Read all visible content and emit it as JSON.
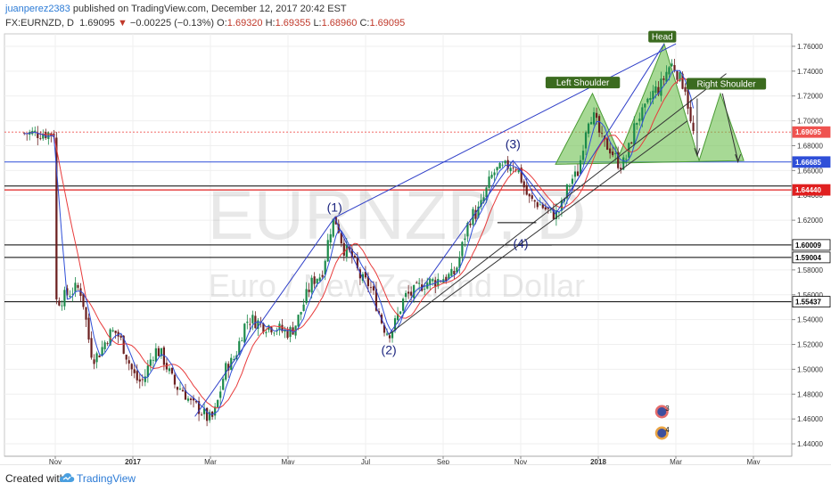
{
  "header": {
    "author": "juanperez2383",
    "published": "published on TradingView.com, December 12, 2017 20:42 EST",
    "symbol": "FX:EURNZD, D",
    "last": "1.69095",
    "change": "−0.00225 (−0.13%)",
    "open_label": "O:",
    "open": "1.69320",
    "high_label": "H:",
    "high": "1.69355",
    "low_label": "L:",
    "low": "1.68960",
    "close_label": "C:",
    "close": "1.69095"
  },
  "watermark": {
    "symbol": "EURNZD, D",
    "name": "Euro / New Zealand Dollar"
  },
  "footer": {
    "created": "Created with",
    "brand": "TradingView"
  },
  "colors": {
    "up": "#1b8a4a",
    "down": "#6b1f1f",
    "ma_blue": "#2f4fd8",
    "ma_red": "#e83b3b",
    "pattern_fill": "#6dbf4f",
    "label_bg": "#3b6b1f"
  },
  "chart_data": {
    "type": "candlestick",
    "ylim": [
      1.43,
      1.77
    ],
    "yticks": [
      "1.76000",
      "1.74000",
      "1.72000",
      "1.70000",
      "1.68000",
      "1.66000",
      "1.64000",
      "1.62000",
      "1.60000",
      "1.58000",
      "1.56000",
      "1.54000",
      "1.52000",
      "1.50000",
      "1.48000",
      "1.46000",
      "1.44000"
    ],
    "xticks": [
      "Nov",
      "2017",
      "Mar",
      "May",
      "Jul",
      "Sep",
      "Nov",
      "2018",
      "Mar",
      "May"
    ],
    "price_labels": [
      {
        "text": "1.69095",
        "value": 1.69095,
        "color": "#ef5350"
      },
      {
        "text": "1.66685",
        "value": 1.66685,
        "color": "#2f4fd8"
      },
      {
        "text": "1.64440",
        "value": 1.6444,
        "color": "#e02020"
      },
      {
        "text": "1.60009",
        "value": 1.60009,
        "color": "#000000"
      },
      {
        "text": "1.59004",
        "value": 1.59004,
        "color": "#000000"
      },
      {
        "text": "1.55437",
        "value": 1.55437,
        "color": "#000000"
      }
    ],
    "wave_labels": [
      "(1)",
      "(2)",
      "(3)",
      "(4)"
    ],
    "pattern_labels": [
      "Left Shoulder",
      "Head",
      "Right Shoulder"
    ],
    "pivots": [
      {
        "m": 0,
        "v": 1.555
      },
      {
        "m": 0.6,
        "v": 1.565
      },
      {
        "m": 1.0,
        "v": 1.51
      },
      {
        "m": 1.5,
        "v": 1.53
      },
      {
        "m": 2.2,
        "v": 1.49
      },
      {
        "m": 2.6,
        "v": 1.515
      },
      {
        "m": 3.2,
        "v": 1.485
      },
      {
        "m": 3.6,
        "v": 1.47
      },
      {
        "m": 4.0,
        "v": 1.46
      },
      {
        "m": 4.5,
        "v": 1.505
      },
      {
        "m": 5.0,
        "v": 1.54
      },
      {
        "m": 5.5,
        "v": 1.535
      },
      {
        "m": 6.0,
        "v": 1.53
      },
      {
        "m": 6.8,
        "v": 1.575
      },
      {
        "m": 7.2,
        "v": 1.62
      },
      {
        "m": 7.5,
        "v": 1.595
      },
      {
        "m": 8.0,
        "v": 1.57
      },
      {
        "m": 8.6,
        "v": 1.53
      },
      {
        "m": 9.1,
        "v": 1.56
      },
      {
        "m": 9.6,
        "v": 1.57
      },
      {
        "m": 10.2,
        "v": 1.575
      },
      {
        "m": 10.8,
        "v": 1.625
      },
      {
        "m": 11.4,
        "v": 1.66
      },
      {
        "m": 11.8,
        "v": 1.665
      },
      {
        "m": 12.3,
        "v": 1.635
      },
      {
        "m": 12.9,
        "v": 1.625
      },
      {
        "m": 13.4,
        "v": 1.655
      },
      {
        "m": 13.8,
        "v": 1.705
      },
      {
        "m": 14.2,
        "v": 1.68
      },
      {
        "m": 14.6,
        "v": 1.665
      },
      {
        "m": 15.1,
        "v": 1.705
      },
      {
        "m": 15.5,
        "v": 1.725
      },
      {
        "m": 15.9,
        "v": 1.745
      },
      {
        "m": 16.2,
        "v": 1.73
      },
      {
        "m": 16.45,
        "v": 1.69
      }
    ]
  }
}
